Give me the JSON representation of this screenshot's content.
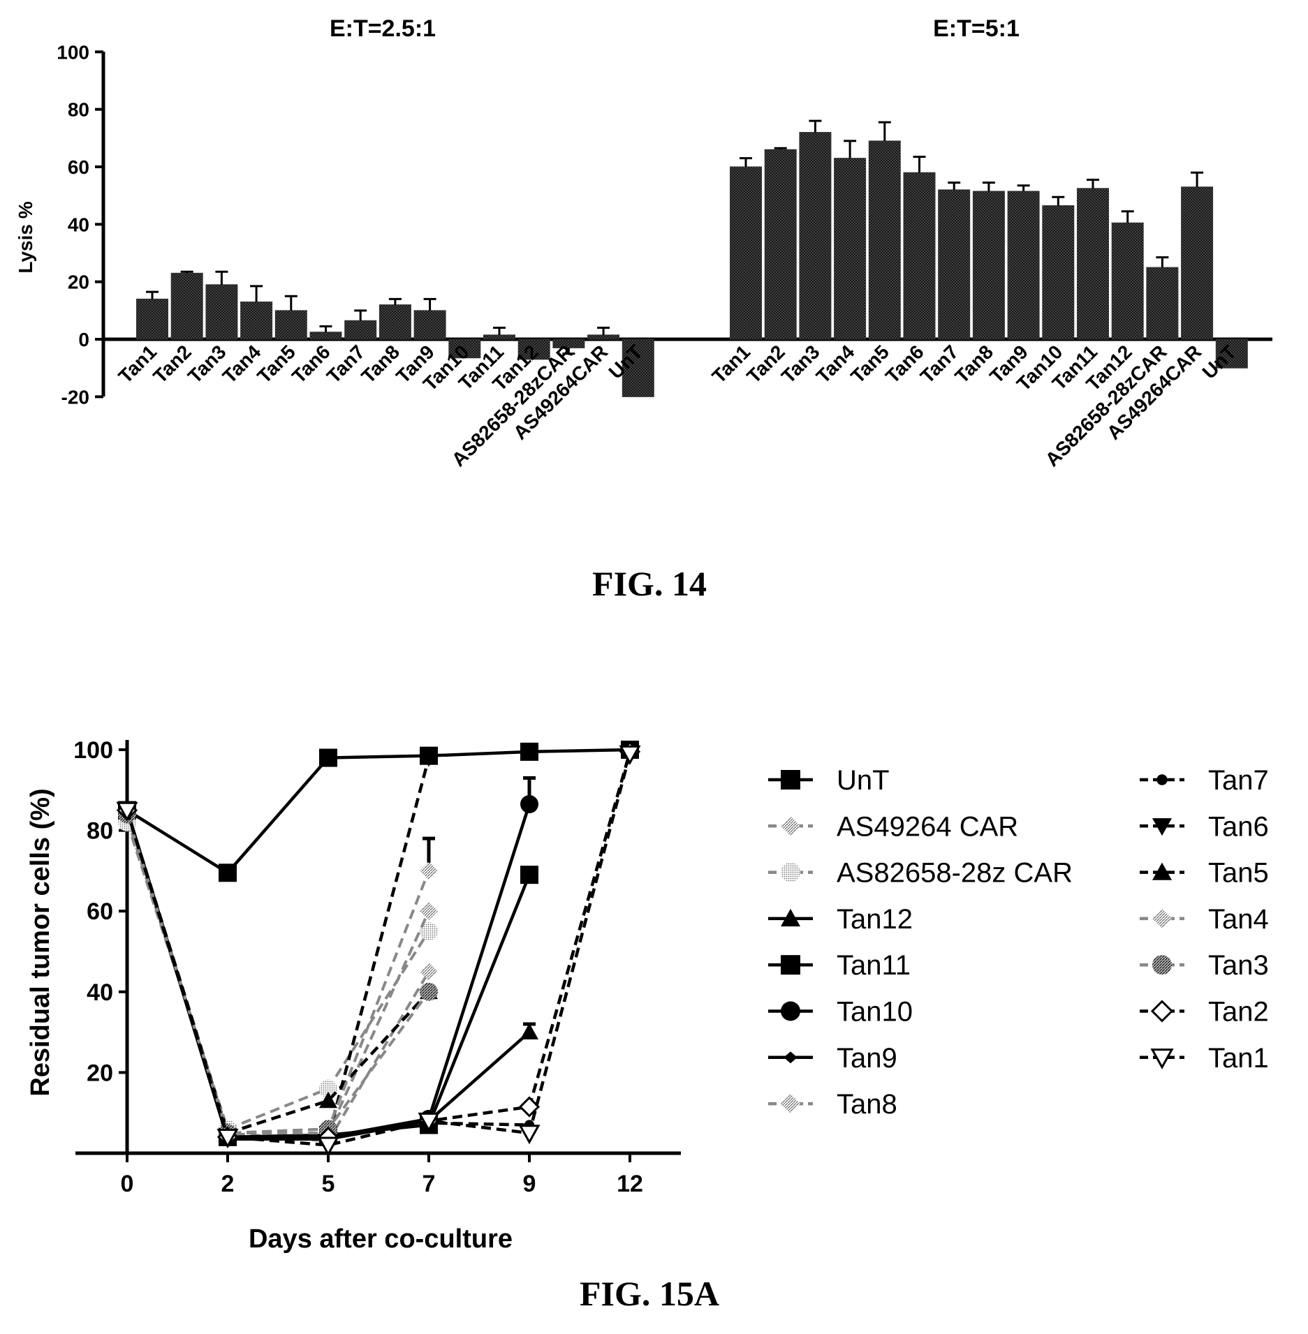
{
  "chart_data": [
    {
      "type": "bar",
      "figure_label": "FIG. 14",
      "ylabel": "Lysis %",
      "ylim": [
        -20,
        100
      ],
      "yticks": [
        -20,
        0,
        20,
        40,
        60,
        80,
        100
      ],
      "error_bars": true,
      "panels": [
        {
          "title": "E:T=2.5:1",
          "categories": [
            "Tan1",
            "Tan2",
            "Tan3",
            "Tan4",
            "Tan5",
            "Tan6",
            "Tan7",
            "Tan8",
            "Tan9",
            "Tan10",
            "Tan11",
            "Tan12",
            "AS82658-28zCAR",
            "AS49264CAR",
            "UnT"
          ],
          "values": [
            14,
            23,
            19,
            13,
            10,
            2.5,
            6.5,
            12,
            10,
            -6.5,
            1.5,
            -7,
            -3,
            1.5,
            -20
          ],
          "errors": [
            2.5,
            0.5,
            4.5,
            5.5,
            5,
            2,
            3.5,
            2,
            4,
            0,
            2.5,
            0,
            2,
            2.5,
            0
          ]
        },
        {
          "title": "E:T=5:1",
          "categories": [
            "Tan1",
            "Tan2",
            "Tan3",
            "Tan4",
            "Tan5",
            "Tan6",
            "Tan7",
            "Tan8",
            "Tan9",
            "Tan10",
            "Tan11",
            "Tan12",
            "AS82658-28zCAR",
            "AS49264CAR",
            "UnT"
          ],
          "values": [
            60,
            66,
            72,
            63,
            69,
            58,
            52,
            51.5,
            51.5,
            46.5,
            52.5,
            40.5,
            25,
            53,
            -10
          ],
          "errors": [
            3,
            0.5,
            4,
            6,
            6.5,
            5.5,
            2.5,
            3,
            2,
            3,
            3,
            4,
            3.5,
            5,
            0
          ]
        }
      ]
    },
    {
      "type": "line",
      "figure_label": "FIG. 15A",
      "xlabel": "Days after co-culture",
      "ylabel": "Residual tumor cells (%)",
      "x": [
        0,
        2,
        5,
        7,
        9,
        12
      ],
      "ylim": [
        0,
        100
      ],
      "yticks": [
        20,
        40,
        60,
        80,
        100
      ],
      "series": [
        {
          "name": "UnT",
          "values": [
            85,
            69.5,
            98,
            98.5,
            99.5,
            100
          ],
          "marker": "square",
          "dash": false
        },
        {
          "name": "AS49264 CAR",
          "values": [
            83,
            5,
            3,
            45,
            null,
            null
          ],
          "marker": "hatched",
          "dash": true
        },
        {
          "name": "AS82658-28z CAR",
          "values": [
            82,
            6,
            16,
            55,
            null,
            null
          ],
          "marker": "dotted",
          "dash": true
        },
        {
          "name": "Tan12",
          "values": [
            85,
            4,
            4,
            8,
            30,
            null
          ],
          "marker": "triangle-up",
          "dash": false
        },
        {
          "name": "Tan11",
          "values": [
            85,
            4,
            4.5,
            7,
            69,
            null
          ],
          "marker": "square",
          "dash": false
        },
        {
          "name": "Tan10",
          "values": [
            85,
            4,
            4,
            8.5,
            86.5,
            null
          ],
          "marker": "circle",
          "dash": false
        },
        {
          "name": "Tan9",
          "values": [
            85,
            3.5,
            3.5,
            8,
            null,
            null
          ],
          "marker": "diamond-small",
          "dash": false
        },
        {
          "name": "Tan8",
          "values": [
            84,
            5,
            5,
            60,
            null,
            null
          ],
          "marker": "hatched",
          "dash": true
        },
        {
          "name": "Tan7",
          "values": [
            85,
            4,
            4,
            7.5,
            7,
            null
          ],
          "marker": "circle-small",
          "dash": true
        },
        {
          "name": "Tan6",
          "values": [
            85,
            4,
            4,
            98,
            null,
            null
          ],
          "marker": "triangle-down",
          "dash": true
        },
        {
          "name": "Tan5",
          "values": [
            85,
            5,
            13,
            40,
            null,
            null
          ],
          "marker": "triangle-up",
          "dash": true
        },
        {
          "name": "Tan4",
          "values": [
            84,
            5,
            6,
            70,
            null,
            null
          ],
          "marker": "hatched",
          "dash": true
        },
        {
          "name": "Tan3",
          "values": [
            84,
            5,
            6,
            40,
            null,
            null
          ],
          "marker": "hatched-circle",
          "dash": true
        },
        {
          "name": "Tan2",
          "values": [
            85,
            4,
            4,
            8,
            11.5,
            99.5
          ],
          "marker": "diamond-open",
          "dash": true
        },
        {
          "name": "Tan1",
          "values": [
            85,
            4,
            2,
            8,
            5,
            99
          ],
          "marker": "triangle-down-open",
          "dash": true
        }
      ]
    }
  ]
}
